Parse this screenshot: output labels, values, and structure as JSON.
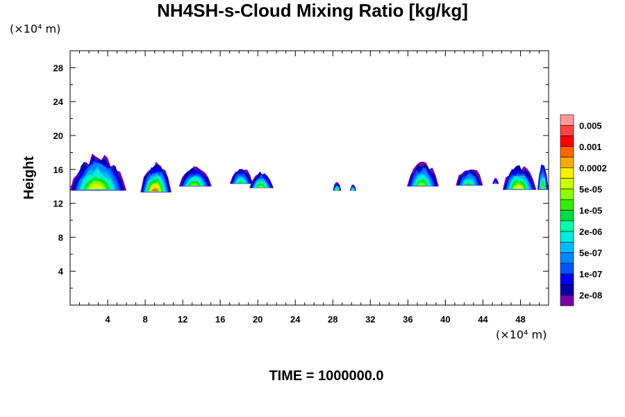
{
  "chart_data": {
    "type": "heatmap",
    "title": "NH4SH-s-Cloud Mixing Ratio [kg/kg]",
    "ylabel": "Height",
    "y_unit": "(×10⁴ m)",
    "x_unit": "(×10⁴ m)",
    "annotation": "TIME = 1000000.0",
    "xlim": [
      0,
      51
    ],
    "ylim": [
      0,
      30
    ],
    "x_ticks": [
      "4",
      "8",
      "12",
      "16",
      "20",
      "24",
      "28",
      "32",
      "36",
      "40",
      "44",
      "48"
    ],
    "y_ticks": [
      "4",
      "8",
      "12",
      "16",
      "20",
      "24",
      "28"
    ],
    "colorbar": {
      "labels": [
        "0.005",
        "0.001",
        "0.0002",
        "5e-05",
        "1e-05",
        "2e-06",
        "5e-07",
        "1e-07",
        "2e-08"
      ],
      "colors": [
        "#ff9999",
        "#ff4444",
        "#ff0000",
        "#ff6600",
        "#ffaa00",
        "#ffee00",
        "#ccff00",
        "#88ff00",
        "#33ee00",
        "#00dd44",
        "#00ffaa",
        "#00eedd",
        "#00bbff",
        "#0088ff",
        "#0055ff",
        "#0000ff",
        "#0000aa",
        "#7700aa"
      ]
    },
    "clouds": [
      {
        "x_start": 0.0,
        "x_end": 6.0,
        "base": 13.5,
        "top": 17.8,
        "peak": "0.0002"
      },
      {
        "x_start": 7.5,
        "x_end": 10.8,
        "base": 13.3,
        "top": 16.7,
        "peak": "0.001"
      },
      {
        "x_start": 11.6,
        "x_end": 15.1,
        "base": 14.0,
        "top": 16.3,
        "peak": "5e-05"
      },
      {
        "x_start": 17.0,
        "x_end": 19.5,
        "base": 14.3,
        "top": 16.3,
        "peak": "1e-05"
      },
      {
        "x_start": 19.1,
        "x_end": 21.7,
        "base": 13.8,
        "top": 15.8,
        "peak": "5e-05"
      },
      {
        "x_start": 28.0,
        "x_end": 28.9,
        "base": 13.5,
        "top": 14.5,
        "peak": "5e-05"
      },
      {
        "x_start": 29.8,
        "x_end": 30.5,
        "base": 13.5,
        "top": 14.2,
        "peak": "5e-05"
      },
      {
        "x_start": 35.9,
        "x_end": 39.3,
        "base": 14.0,
        "top": 16.9,
        "peak": "5e-05"
      },
      {
        "x_start": 41.1,
        "x_end": 44.0,
        "base": 14.1,
        "top": 16.3,
        "peak": "1e-05"
      },
      {
        "x_start": 45.0,
        "x_end": 45.7,
        "base": 14.3,
        "top": 15.0,
        "peak": "5e-07"
      },
      {
        "x_start": 46.1,
        "x_end": 49.7,
        "base": 13.6,
        "top": 16.5,
        "peak": "0.0002"
      },
      {
        "x_start": 49.8,
        "x_end": 51.0,
        "base": 13.6,
        "top": 17.0,
        "peak": "5e-05"
      }
    ]
  }
}
